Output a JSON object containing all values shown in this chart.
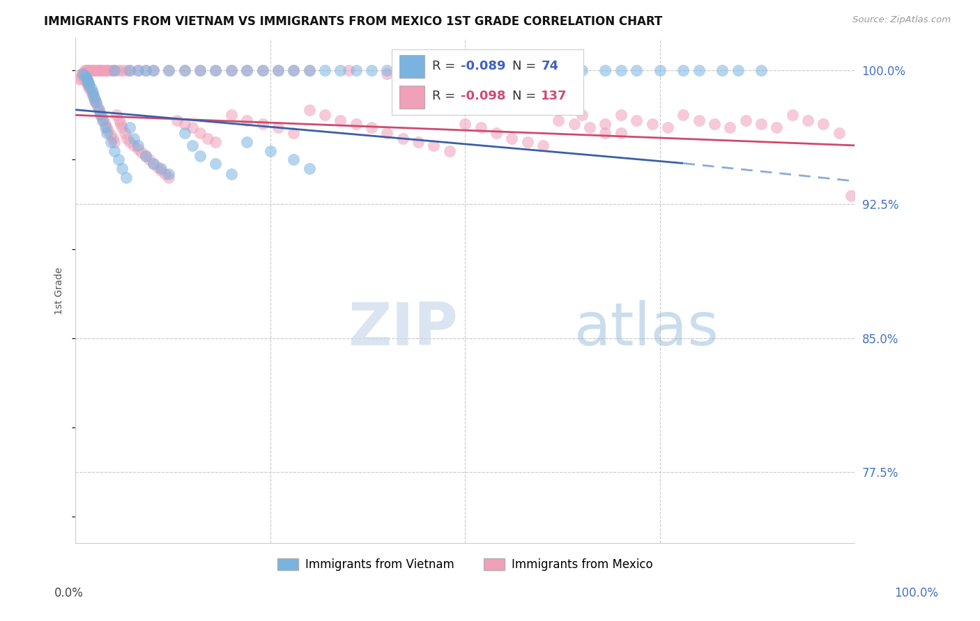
{
  "title": "IMMIGRANTS FROM VIETNAM VS IMMIGRANTS FROM MEXICO 1ST GRADE CORRELATION CHART",
  "source": "Source: ZipAtlas.com",
  "ylabel": "1st Grade",
  "yticks": [
    100.0,
    92.5,
    85.0,
    77.5
  ],
  "ytick_labels": [
    "100.0%",
    "92.5%",
    "85.0%",
    "77.5%"
  ],
  "legend_label_blue": "Immigrants from Vietnam",
  "legend_label_pink": "Immigrants from Mexico",
  "blue_color": "#7ab3e0",
  "pink_color": "#f0a0b8",
  "trendline_blue_solid": "#3a5fa8",
  "trendline_blue_dashed": "#8aabda",
  "trendline_pink": "#d04870",
  "background_color": "#ffffff",
  "grid_color": "#c8c8c8",
  "watermark": "ZIPatlas",
  "xmin": 0.0,
  "xmax": 100.0,
  "ymin": 73.5,
  "ymax": 101.8,
  "blue_trend_start_x": 0,
  "blue_trend_start_y": 97.8,
  "blue_trend_end_solid_x": 78,
  "blue_trend_end_y": 94.8,
  "blue_trend_end_dashed_x": 100,
  "blue_trend_end_dashed_y": 93.8,
  "pink_trend_start_x": 0,
  "pink_trend_start_y": 97.5,
  "pink_trend_end_x": 100,
  "pink_trend_end_y": 95.8,
  "vietnam_x": [
    1.0,
    1.2,
    1.4,
    1.5,
    1.6,
    1.7,
    1.8,
    2.0,
    2.2,
    2.3,
    2.5,
    2.7,
    3.0,
    3.2,
    3.5,
    3.8,
    4.0,
    4.5,
    5.0,
    5.5,
    6.0,
    6.5,
    7.0,
    7.5,
    8.0,
    9.0,
    10.0,
    11.0,
    12.0,
    14.0,
    15.0,
    16.0,
    18.0,
    20.0,
    22.0,
    25.0,
    28.0,
    30.0,
    5.0,
    7.0,
    8.0,
    9.0,
    10.0,
    12.0,
    14.0,
    16.0,
    18.0,
    20.0,
    22.0,
    24.0,
    26.0,
    28.0,
    30.0,
    32.0,
    34.0,
    36.0,
    38.0,
    40.0,
    42.0,
    45.0,
    48.0,
    50.0,
    55.0,
    60.0,
    65.0,
    68.0,
    70.0,
    72.0,
    75.0,
    78.0,
    80.0,
    83.0,
    85.0,
    88.0
  ],
  "vietnam_y": [
    99.8,
    99.7,
    99.6,
    99.5,
    99.4,
    99.3,
    99.2,
    99.0,
    98.8,
    98.6,
    98.4,
    98.2,
    97.8,
    97.5,
    97.2,
    96.8,
    96.5,
    96.0,
    95.5,
    95.0,
    94.5,
    94.0,
    96.8,
    96.2,
    95.8,
    95.2,
    94.8,
    94.5,
    94.2,
    96.5,
    95.8,
    95.2,
    94.8,
    94.2,
    96.0,
    95.5,
    95.0,
    94.5,
    100.0,
    100.0,
    100.0,
    100.0,
    100.0,
    100.0,
    100.0,
    100.0,
    100.0,
    100.0,
    100.0,
    100.0,
    100.0,
    100.0,
    100.0,
    100.0,
    100.0,
    100.0,
    100.0,
    100.0,
    100.0,
    100.0,
    100.0,
    100.0,
    100.0,
    100.0,
    100.0,
    100.0,
    100.0,
    100.0,
    100.0,
    100.0,
    100.0,
    100.0,
    100.0,
    100.0
  ],
  "mexico_x": [
    0.5,
    0.7,
    0.9,
    1.0,
    1.1,
    1.2,
    1.3,
    1.4,
    1.5,
    1.6,
    1.7,
    1.8,
    2.0,
    2.2,
    2.4,
    2.5,
    2.6,
    2.8,
    3.0,
    3.2,
    3.4,
    3.6,
    3.8,
    4.0,
    4.2,
    4.5,
    4.8,
    5.0,
    5.3,
    5.6,
    5.8,
    6.0,
    6.3,
    6.6,
    7.0,
    7.5,
    8.0,
    8.5,
    9.0,
    9.5,
    10.0,
    10.5,
    11.0,
    11.5,
    12.0,
    13.0,
    14.0,
    15.0,
    16.0,
    17.0,
    18.0,
    20.0,
    22.0,
    24.0,
    26.0,
    28.0,
    30.0,
    32.0,
    34.0,
    36.0,
    38.0,
    40.0,
    42.0,
    44.0,
    46.0,
    48.0,
    50.0,
    52.0,
    54.0,
    56.0,
    58.0,
    60.0,
    62.0,
    64.0,
    66.0,
    68.0,
    70.0,
    72.0,
    74.0,
    76.0,
    78.0,
    80.0,
    82.0,
    84.0,
    86.0,
    88.0,
    90.0,
    92.0,
    94.0,
    96.0,
    98.0,
    99.5,
    0.8,
    1.0,
    1.2,
    1.4,
    1.5,
    1.6,
    1.8,
    2.0,
    2.2,
    2.4,
    2.6,
    2.8,
    3.0,
    3.2,
    3.4,
    3.6,
    3.8,
    4.0,
    4.2,
    4.5,
    4.8,
    5.0,
    5.5,
    6.0,
    6.5,
    7.0,
    8.0,
    9.0,
    10.0,
    12.0,
    14.0,
    16.0,
    18.0,
    20.0,
    22.0,
    24.0,
    26.0,
    28.0,
    30.0,
    35.0,
    40.0,
    42.0,
    45.0,
    48.0,
    50.0,
    55.0,
    60.0,
    62.0,
    65.0,
    68.0,
    70.0
  ],
  "mexico_y": [
    99.5,
    99.6,
    99.7,
    99.8,
    99.7,
    99.6,
    99.5,
    99.4,
    99.3,
    99.2,
    99.1,
    99.0,
    98.8,
    98.6,
    98.4,
    98.3,
    98.2,
    98.0,
    97.8,
    97.6,
    97.4,
    97.2,
    97.0,
    96.8,
    96.6,
    96.4,
    96.2,
    96.0,
    97.5,
    97.2,
    97.0,
    96.8,
    96.5,
    96.2,
    96.0,
    95.8,
    95.6,
    95.4,
    95.2,
    95.0,
    94.8,
    94.6,
    94.4,
    94.2,
    94.0,
    97.2,
    97.0,
    96.8,
    96.5,
    96.2,
    96.0,
    97.5,
    97.2,
    97.0,
    96.8,
    96.5,
    97.8,
    97.5,
    97.2,
    97.0,
    96.8,
    96.5,
    96.2,
    96.0,
    95.8,
    95.5,
    97.0,
    96.8,
    96.5,
    96.2,
    96.0,
    95.8,
    97.2,
    97.0,
    96.8,
    96.5,
    97.5,
    97.2,
    97.0,
    96.8,
    97.5,
    97.2,
    97.0,
    96.8,
    97.2,
    97.0,
    96.8,
    97.5,
    97.2,
    97.0,
    96.5,
    93.0,
    99.8,
    99.9,
    100.0,
    100.0,
    100.0,
    100.0,
    100.0,
    100.0,
    100.0,
    100.0,
    100.0,
    100.0,
    100.0,
    100.0,
    100.0,
    100.0,
    100.0,
    100.0,
    100.0,
    100.0,
    100.0,
    100.0,
    100.0,
    100.0,
    100.0,
    100.0,
    100.0,
    100.0,
    100.0,
    100.0,
    100.0,
    100.0,
    100.0,
    100.0,
    100.0,
    100.0,
    100.0,
    100.0,
    100.0,
    100.0,
    99.8,
    99.6,
    99.4,
    99.2,
    99.0,
    98.5,
    98.0,
    97.8,
    97.5,
    97.0,
    96.5
  ]
}
